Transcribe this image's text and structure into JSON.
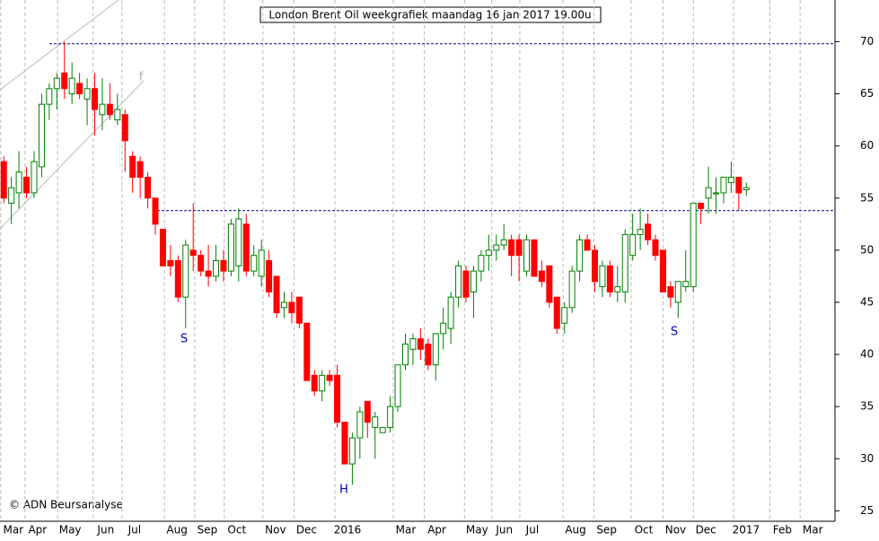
{
  "chart_data": {
    "type": "candlestick",
    "title": "London Brent Oil weekgrafiek maandag 16 jan 2017 19.00u",
    "open": [
      58.5,
      54.5,
      55.5,
      57,
      55.5,
      58,
      64,
      65.5,
      67,
      65,
      66,
      64.5,
      65.5,
      63,
      64,
      62.5,
      63,
      59,
      58.5,
      57,
      55,
      52,
      49,
      49,
      45.5,
      50,
      49.5,
      48,
      47.5,
      49,
      48,
      48.5,
      52.5,
      48,
      47.5,
      49,
      47.5,
      44.5,
      45,
      45.5,
      43,
      38,
      36.5,
      38,
      38,
      33.5,
      29.5,
      32,
      35.5,
      33,
      32.5,
      33,
      35,
      39,
      40.5,
      41.5,
      41,
      39,
      42,
      42.5,
      45.5,
      48,
      46,
      48,
      49.5,
      50,
      50.5,
      51,
      51,
      48,
      51,
      48,
      48.5,
      45.5,
      43,
      44.5,
      48,
      51,
      50,
      46.5,
      48.5,
      46,
      46,
      49.5,
      51.5,
      52.5,
      51,
      50,
      46.5,
      45,
      46.5,
      46.5,
      54.5,
      55,
      55.5,
      55.5,
      56.5,
      57,
      55.8
    ],
    "high": [
      59,
      57,
      59.5,
      58,
      59.5,
      65,
      66,
      67,
      70,
      68,
      67,
      66.5,
      67,
      66.5,
      66,
      65,
      63.5,
      59.5,
      59,
      57.5,
      55,
      52,
      50.5,
      49.5,
      51,
      54.5,
      50,
      50.5,
      50.5,
      50,
      53,
      54,
      53.5,
      50.5,
      51,
      50,
      47.5,
      46,
      46,
      45.5,
      43,
      38.5,
      38.5,
      38.5,
      39,
      33.5,
      32.5,
      35,
      35.5,
      34.5,
      33,
      36,
      39,
      42,
      42,
      42.5,
      41.5,
      42,
      44.5,
      46,
      49,
      48.5,
      48.5,
      50,
      51.5,
      51.5,
      52.5,
      51.5,
      51.5,
      51.5,
      51,
      49,
      48.5,
      45.5,
      45,
      48.5,
      51.5,
      51.5,
      50.5,
      49,
      49,
      48.5,
      52,
      53.5,
      54,
      53.5,
      51.5,
      50,
      47,
      47,
      50,
      54.5,
      54.5,
      58,
      57,
      57,
      58.5,
      57,
      56.5
    ],
    "low": [
      54.5,
      52.5,
      54,
      55,
      55,
      57,
      62.5,
      63.5,
      64.5,
      64,
      64.5,
      62,
      61,
      61.5,
      62.5,
      62,
      57.5,
      55.5,
      55,
      54,
      51.5,
      48.5,
      47.5,
      45,
      42.5,
      48,
      47.5,
      46.5,
      47,
      47,
      47.5,
      47,
      47.5,
      47.5,
      46.5,
      45.5,
      43.5,
      43.5,
      43,
      42.5,
      37.5,
      36,
      35.5,
      37,
      33,
      29.5,
      27.5,
      30,
      32,
      30,
      32.5,
      32.5,
      34.5,
      38.5,
      39,
      39.5,
      38.5,
      37.5,
      40.5,
      41,
      44.5,
      45,
      43.5,
      47,
      48,
      49,
      50,
      47.5,
      47,
      47.5,
      47.5,
      46.5,
      44.5,
      42,
      42,
      44,
      47,
      50,
      46,
      45.5,
      45.5,
      45,
      45,
      49,
      50,
      50.5,
      49,
      46,
      44.5,
      43.5,
      46,
      46,
      52.5,
      53.5,
      53.5,
      54.5,
      55.5,
      53.8,
      55.2
    ],
    "close": [
      55,
      56,
      57.5,
      55.5,
      58.5,
      64,
      65.5,
      66.5,
      65.5,
      66.5,
      65,
      65.5,
      63.5,
      64,
      63,
      63.5,
      60.5,
      57,
      57,
      55,
      52.5,
      48.5,
      48.5,
      45.5,
      50.5,
      49.5,
      48,
      47.5,
      49,
      48,
      52.5,
      53,
      48,
      49.5,
      50,
      46,
      44,
      45,
      44,
      43,
      37.5,
      36.5,
      38,
      37.5,
      33.5,
      29.5,
      32,
      34.5,
      33.5,
      34,
      33,
      35,
      39,
      41,
      41.5,
      40.5,
      39,
      42,
      43,
      45.5,
      48.5,
      45.5,
      48,
      49.5,
      50,
      50.5,
      51,
      49.5,
      49.5,
      51,
      47.5,
      47,
      45,
      42.5,
      44.5,
      48,
      51,
      50,
      47,
      48.5,
      46,
      46.5,
      51.5,
      51.5,
      52,
      51,
      49.5,
      46,
      45.5,
      47,
      47,
      54.5,
      54,
      56,
      55.5,
      57,
      57,
      55.5,
      56
    ],
    "up_color": "#008000",
    "down_color": "#ff0000",
    "xlim": [
      -0.5,
      109.7
    ],
    "xticks": [
      {
        "value": -0.4,
        "label": "Mar"
      },
      {
        "value": 2.8,
        "label": "Apr"
      },
      {
        "value": 7.1,
        "label": "May"
      },
      {
        "value": 11.8,
        "label": "Jun"
      },
      {
        "value": 15.6,
        "label": "Jul"
      },
      {
        "value": 21.2,
        "label": "Aug"
      },
      {
        "value": 25.2,
        "label": "Sep"
      },
      {
        "value": 29.1,
        "label": "Oct"
      },
      {
        "value": 34.2,
        "label": "Nov"
      },
      {
        "value": 38.3,
        "label": "Dec"
      },
      {
        "value": 43.7,
        "label": "2016"
      },
      {
        "value": 51.4,
        "label": "Mar"
      },
      {
        "value": 55.5,
        "label": "Apr"
      },
      {
        "value": 60.8,
        "label": "May"
      },
      {
        "value": 64.4,
        "label": "Jun"
      },
      {
        "value": 68.1,
        "label": "Jul"
      },
      {
        "value": 73.8,
        "label": "Aug"
      },
      {
        "value": 77.9,
        "label": "Sep"
      },
      {
        "value": 82.8,
        "label": "Oct"
      },
      {
        "value": 87,
        "label": "Nov"
      },
      {
        "value": 91,
        "label": "Dec"
      },
      {
        "value": 96.3,
        "label": "2017"
      },
      {
        "value": 101.1,
        "label": "Feb"
      },
      {
        "value": 105.1,
        "label": "Mar"
      }
    ],
    "ylim": [
      24,
      74
    ],
    "yticks": [
      25,
      30,
      35,
      40,
      45,
      50,
      55,
      60,
      65,
      70
    ],
    "reference_lines": [
      69.8,
      53.8
    ],
    "annotations": [
      "f",
      "S",
      "H",
      "S"
    ],
    "copyright": "© ADN Beursanalyse",
    "grid": true
  }
}
